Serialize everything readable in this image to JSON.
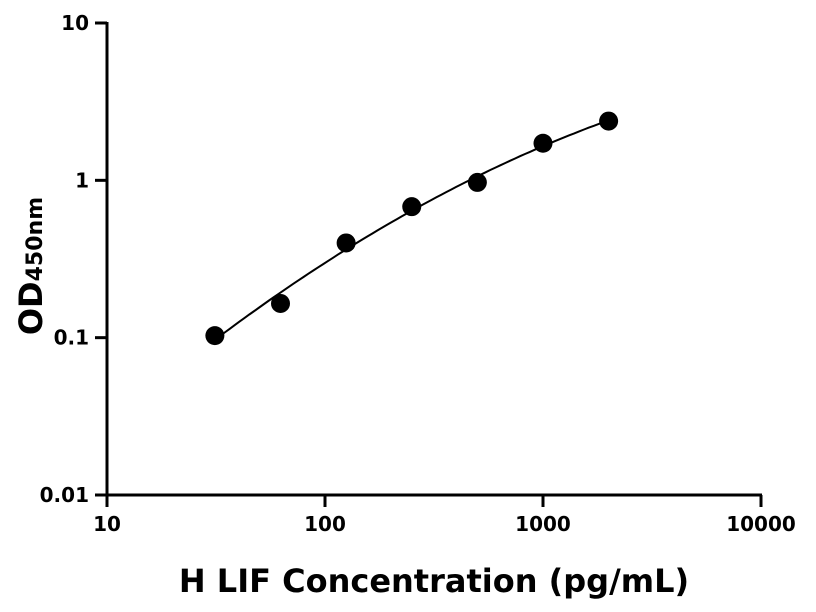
{
  "chart_data": {
    "type": "scatter",
    "title": "",
    "xlabel": "H LIF Concentration (pg/mL)",
    "ylabel": "OD",
    "ylabel_subscript": "450nm",
    "x_scale": "log",
    "y_scale": "log",
    "xlim": [
      10,
      10000
    ],
    "ylim": [
      0.01,
      10
    ],
    "x_ticks": [
      "10",
      "100",
      "1000",
      "10000"
    ],
    "y_ticks": [
      "0.01",
      "0.1",
      "1",
      "10"
    ],
    "grid": false,
    "fit_curve": true,
    "series": [
      {
        "x": [
          31.25,
          62.5,
          125,
          250,
          500,
          1000,
          2000
        ],
        "y": [
          0.103,
          0.165,
          0.4,
          0.68,
          0.97,
          1.72,
          2.38
        ]
      }
    ],
    "marker_color": "#000000",
    "line_color": "#000000"
  }
}
